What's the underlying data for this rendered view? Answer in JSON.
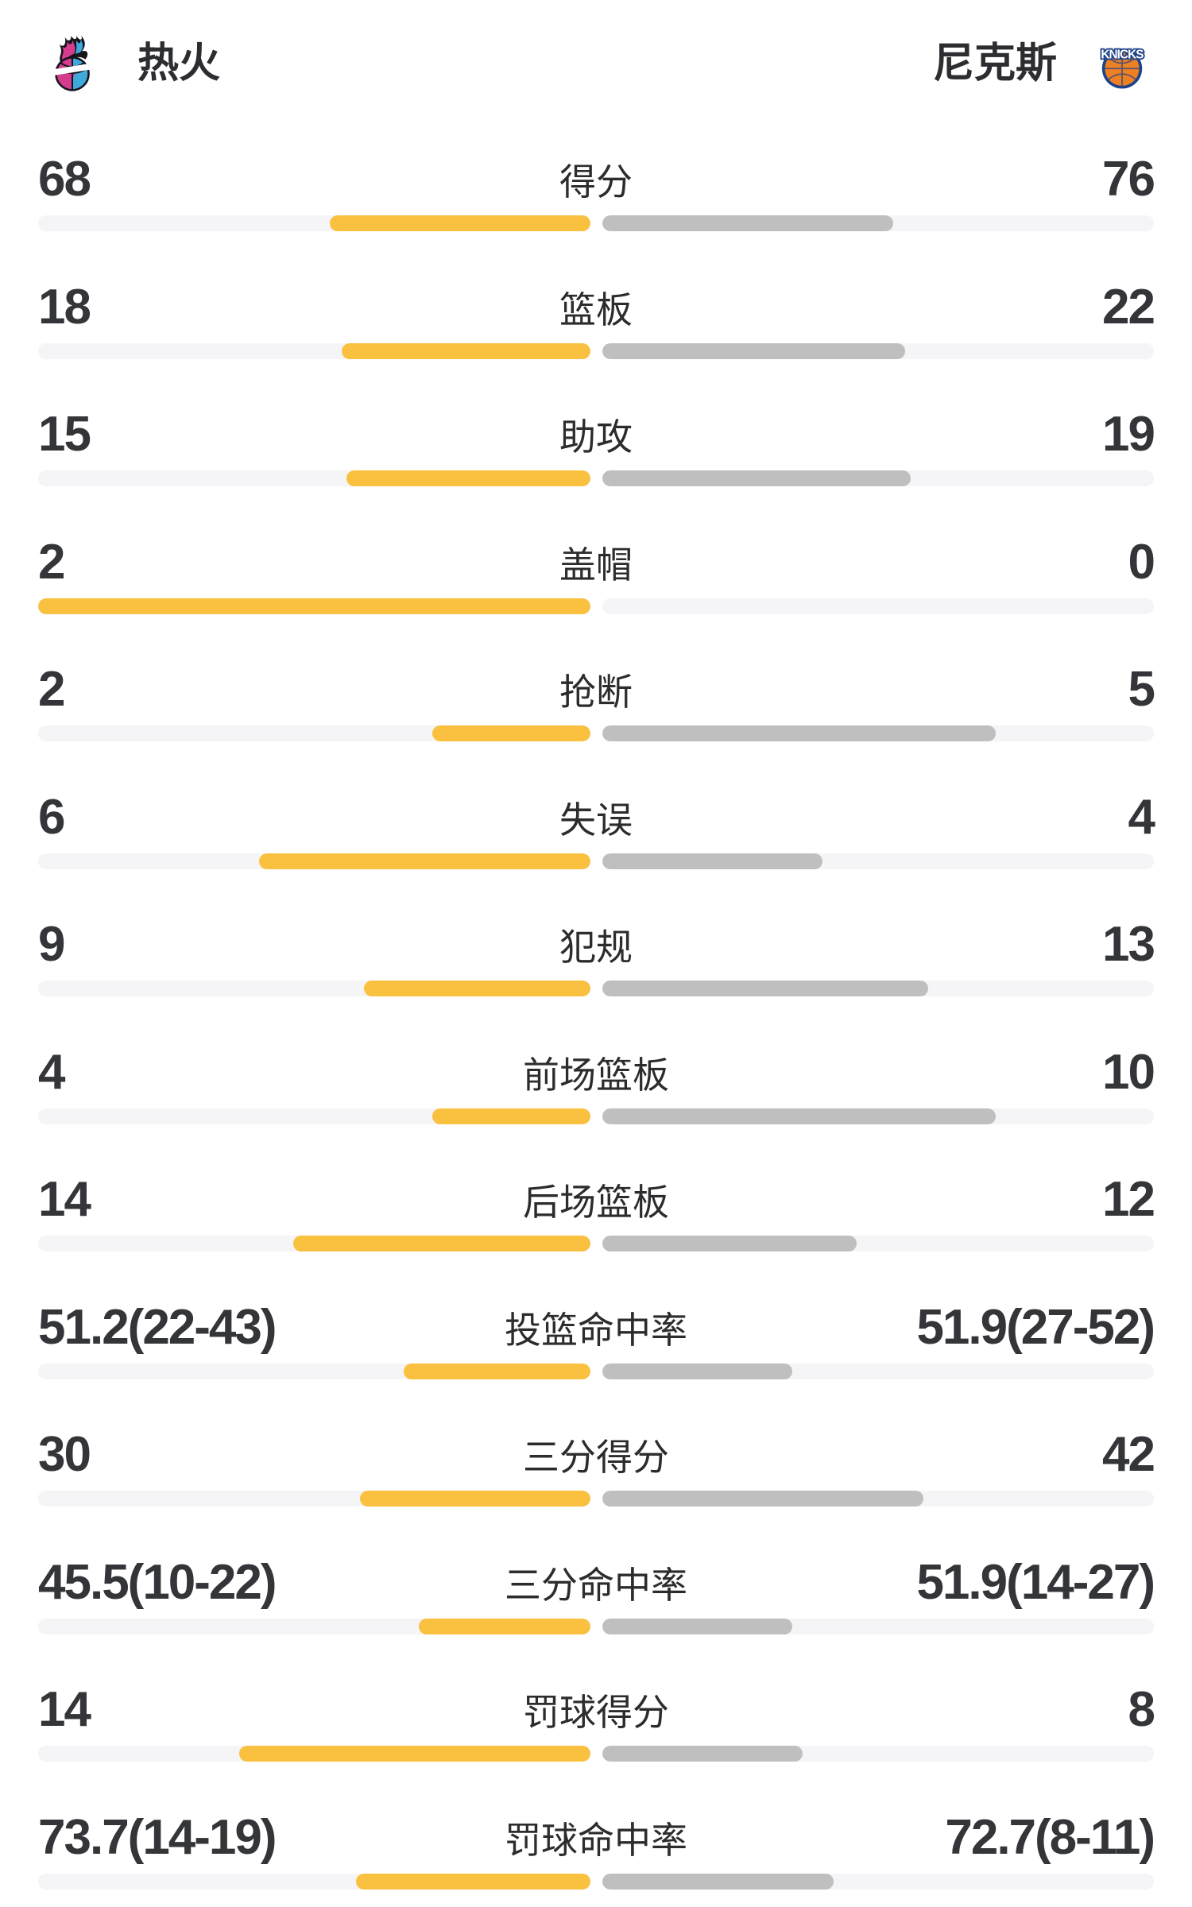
{
  "header": {
    "home_team": {
      "name": "热火",
      "logo": "heat-logo"
    },
    "away_team": {
      "name": "尼克斯",
      "logo": "knicks-logo"
    },
    "knicks_wordmark": "KNICKS"
  },
  "colors": {
    "home_bar": "#FAC03F",
    "away_bar": "#BFBFC0",
    "track": "#F5F5F7",
    "value_text": "#333539",
    "label_text": "#2B2C2E",
    "heat_pink": "#D63C8E",
    "heat_blue": "#3FA9DC",
    "knicks_orange": "#EE8024",
    "knicks_blue": "#1D428A"
  },
  "rows": [
    {
      "label": "得分",
      "home": "68",
      "away": "76",
      "home_bar_pct": 47.2,
      "away_bar_pct": 52.8
    },
    {
      "label": "篮板",
      "home": "18",
      "away": "22",
      "home_bar_pct": 45.0,
      "away_bar_pct": 55.0
    },
    {
      "label": "助攻",
      "home": "15",
      "away": "19",
      "home_bar_pct": 44.1,
      "away_bar_pct": 55.9
    },
    {
      "label": "盖帽",
      "home": "2",
      "away": "0",
      "home_bar_pct": 100,
      "away_bar_pct": 0
    },
    {
      "label": "抢断",
      "home": "2",
      "away": "5",
      "home_bar_pct": 28.6,
      "away_bar_pct": 71.4
    },
    {
      "label": "失误",
      "home": "6",
      "away": "4",
      "home_bar_pct": 60.0,
      "away_bar_pct": 40.0
    },
    {
      "label": "犯规",
      "home": "9",
      "away": "13",
      "home_bar_pct": 40.9,
      "away_bar_pct": 59.1
    },
    {
      "label": "前场篮板",
      "home": "4",
      "away": "10",
      "home_bar_pct": 28.6,
      "away_bar_pct": 71.4
    },
    {
      "label": "后场篮板",
      "home": "14",
      "away": "12",
      "home_bar_pct": 53.8,
      "away_bar_pct": 46.2
    },
    {
      "label": "投篮命中率",
      "home": "51.2(22-43)",
      "away": "51.9(27-52)",
      "home_bar_pct": 33.8,
      "away_bar_pct": 34.5
    },
    {
      "label": "三分得分",
      "home": "30",
      "away": "42",
      "home_bar_pct": 41.7,
      "away_bar_pct": 58.3
    },
    {
      "label": "三分命中率",
      "home": "45.5(10-22)",
      "away": "51.9(14-27)",
      "home_bar_pct": 31.0,
      "away_bar_pct": 34.5
    },
    {
      "label": "罚球得分",
      "home": "14",
      "away": "8",
      "home_bar_pct": 63.6,
      "away_bar_pct": 36.4
    },
    {
      "label": "罚球命中率",
      "home": "73.7(14-19)",
      "away": "72.7(8-11)",
      "home_bar_pct": 42.4,
      "away_bar_pct": 42.0
    }
  ],
  "chart_data": {
    "type": "bar",
    "orientation": "horizontal-mirrored-from-center",
    "legend_position": "top (team header row)",
    "grid": false,
    "categories": [
      "得分",
      "篮板",
      "助攻",
      "盖帽",
      "抢断",
      "失误",
      "犯规",
      "前场篮板",
      "后场篮板",
      "投篮命中率",
      "三分得分",
      "三分命中率",
      "罚球得分",
      "罚球命中率"
    ],
    "series": [
      {
        "name": "热火",
        "color": "#FAC03F",
        "values": [
          68,
          18,
          15,
          2,
          2,
          6,
          9,
          4,
          14,
          51.2,
          30,
          45.5,
          14,
          73.7
        ]
      },
      {
        "name": "尼克斯",
        "color": "#BFBFC0",
        "values": [
          76,
          22,
          19,
          0,
          5,
          4,
          13,
          10,
          12,
          51.9,
          42,
          51.9,
          8,
          72.7
        ]
      }
    ],
    "shooting_detail": {
      "投篮命中率": {
        "热火": "22-43",
        "尼克斯": "27-52"
      },
      "三分命中率": {
        "热火": "10-22",
        "尼克斯": "14-27"
      },
      "罚球命中率": {
        "热火": "14-19",
        "尼克斯": "8-11"
      }
    },
    "bar_length_note": "bars grow outward from the vertical center line; counting stats split a fixed budget by value share, percentage stats scale to the percent value"
  }
}
